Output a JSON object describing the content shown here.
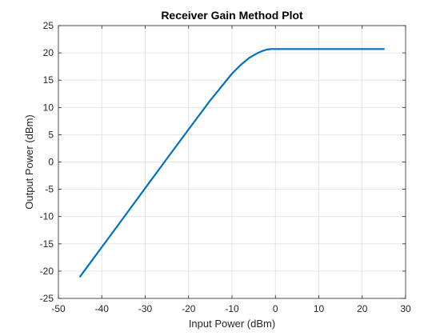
{
  "chart_data": {
    "type": "line",
    "title": "Receiver Gain Method Plot",
    "xlabel": "Input Power (dBm)",
    "ylabel": "Output Power (dBm)",
    "xlim": [
      -50,
      30
    ],
    "ylim": [
      -25,
      25
    ],
    "xticks": [
      -50,
      -40,
      -30,
      -20,
      -10,
      0,
      10,
      20,
      30
    ],
    "yticks": [
      -25,
      -20,
      -15,
      -10,
      -5,
      0,
      5,
      10,
      15,
      20,
      25
    ],
    "xtick_labels": [
      "-50",
      "-40",
      "-30",
      "-20",
      "-10",
      "0",
      "10",
      "20",
      "30"
    ],
    "ytick_labels": [
      "-25",
      "-20",
      "-15",
      "-10",
      "-5",
      "0",
      "5",
      "10",
      "15",
      "20",
      "25"
    ],
    "grid": true,
    "series": [
      {
        "color": "#0072BD",
        "x": [
          -45,
          -40,
          -35,
          -30,
          -25,
          -20,
          -15,
          -10,
          -8,
          -6,
          -4,
          -3,
          -2,
          -1,
          0,
          5,
          10,
          15,
          20,
          25
        ],
        "y": [
          -21,
          -15.6,
          -10.2,
          -4.8,
          0.6,
          6.0,
          11.3,
          16.2,
          17.8,
          19.1,
          20.0,
          20.35,
          20.6,
          20.7,
          20.7,
          20.7,
          20.7,
          20.7,
          20.7,
          20.7
        ]
      }
    ]
  }
}
